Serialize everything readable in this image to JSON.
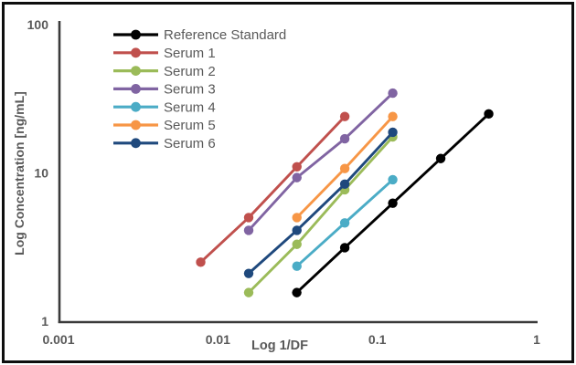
{
  "window": {
    "background": "#ffffff",
    "border_color": "#0e0e0e"
  },
  "chart_data": {
    "type": "line",
    "title": "",
    "xlabel": "Log 1/DF",
    "ylabel": "Log Concentration [ng/mL]",
    "x_scale": "log",
    "y_scale": "log",
    "xlim": [
      0.001,
      1
    ],
    "ylim": [
      1,
      100
    ],
    "x_ticks": [
      "0.001",
      "0.01",
      "0.1",
      "1"
    ],
    "y_ticks": [
      "1",
      "10",
      "100"
    ],
    "grid": false,
    "legend_position": "top-left-inside",
    "marker": "circle",
    "text_color": "#595959",
    "axis_color": "#3b3b3b",
    "series": [
      {
        "name": "Reference Standard",
        "color": "#000000",
        "x": [
          0.03125,
          0.0625,
          0.125,
          0.25,
          0.5
        ],
        "y": [
          1.56,
          3.13,
          6.25,
          12.5,
          25
        ]
      },
      {
        "name": "Serum 1",
        "color": "#C0504D",
        "x": [
          0.0078,
          0.0156,
          0.0313,
          0.0625
        ],
        "y": [
          2.5,
          5.0,
          11.0,
          24.0
        ]
      },
      {
        "name": "Serum 2",
        "color": "#9BBB59",
        "x": [
          0.0156,
          0.0313,
          0.0625,
          0.125
        ],
        "y": [
          1.56,
          3.3,
          7.7,
          17.5
        ]
      },
      {
        "name": "Serum 3",
        "color": "#8064A2",
        "x": [
          0.0156,
          0.0313,
          0.0625,
          0.125
        ],
        "y": [
          4.1,
          9.3,
          17.0,
          34.5
        ]
      },
      {
        "name": "Serum 4",
        "color": "#4BACC6",
        "x": [
          0.0313,
          0.0625,
          0.125
        ],
        "y": [
          2.35,
          4.6,
          9.0
        ]
      },
      {
        "name": "Serum 5",
        "color": "#F79646",
        "x": [
          0.0313,
          0.0625,
          0.125
        ],
        "y": [
          5.0,
          10.7,
          24.0
        ]
      },
      {
        "name": "Serum 6",
        "color": "#1F497D",
        "x": [
          0.0156,
          0.0313,
          0.0625,
          0.125
        ],
        "y": [
          2.1,
          4.1,
          8.4,
          18.8
        ]
      }
    ]
  }
}
